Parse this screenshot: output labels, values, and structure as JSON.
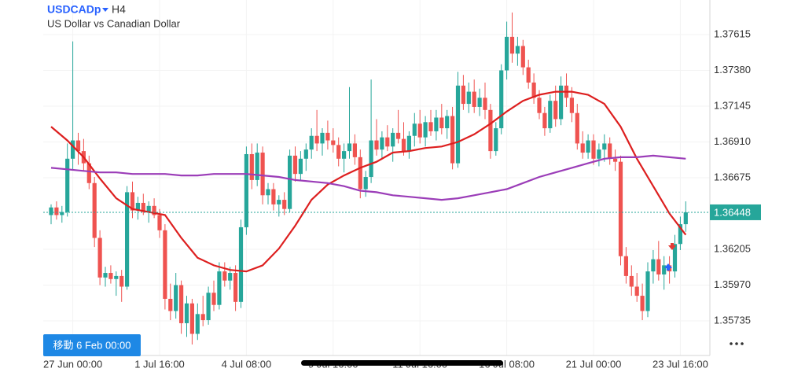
{
  "header": {
    "symbol": "USDCADp",
    "timeframe": "H4",
    "description": "US Dollar vs Canadian Dollar"
  },
  "chart_data": {
    "type": "candlestick",
    "categories": [
      null,
      null,
      null,
      null,
      "27 Jun 00:00",
      null,
      null,
      null,
      null,
      null,
      null,
      null,
      null,
      null,
      null,
      null,
      null,
      null,
      null,
      null,
      "1 Jul 16:00",
      null,
      null,
      null,
      null,
      null,
      null,
      null,
      null,
      null,
      null,
      null,
      null,
      null,
      null,
      null,
      "4 Jul 08:00",
      null,
      null,
      null,
      null,
      null,
      null,
      null,
      null,
      null,
      null,
      null,
      null,
      null,
      null,
      null,
      "9 Jul 16:00",
      null,
      null,
      null,
      null,
      null,
      null,
      null,
      null,
      null,
      null,
      null,
      null,
      null,
      null,
      null,
      "11 Jul 16:00",
      null,
      null,
      null,
      null,
      null,
      null,
      null,
      null,
      null,
      null,
      null,
      null,
      null,
      null,
      null,
      "16 Jul 08:00",
      null,
      null,
      null,
      null,
      null,
      null,
      null,
      null,
      null,
      null,
      null,
      null,
      null,
      null,
      null,
      "21 Jul 00:00",
      null,
      null,
      null,
      null,
      null,
      null,
      null,
      null,
      null,
      null,
      null,
      null,
      null,
      null,
      null,
      "23 Jul 16:00",
      null
    ],
    "candles": [
      [
        1.3643,
        1.365,
        1.3637,
        1.3648
      ],
      [
        1.3648,
        1.3652,
        1.364,
        1.3643
      ],
      [
        1.3643,
        1.3649,
        1.3638,
        1.3645
      ],
      [
        1.3645,
        1.369,
        1.3642,
        1.368
      ],
      [
        1.368,
        1.3757,
        1.3673,
        1.3692
      ],
      [
        1.3692,
        1.3697,
        1.3676,
        1.3685
      ],
      [
        1.3685,
        1.3693,
        1.3672,
        1.3677
      ],
      [
        1.3677,
        1.3682,
        1.366,
        1.3664
      ],
      [
        1.3664,
        1.3668,
        1.3622,
        1.3628
      ],
      [
        1.3628,
        1.3633,
        1.3597,
        1.3602
      ],
      [
        1.3602,
        1.3609,
        1.3596,
        1.3605
      ],
      [
        1.3605,
        1.361,
        1.3598,
        1.3601
      ],
      [
        1.3601,
        1.3606,
        1.359,
        1.3603
      ],
      [
        1.3603,
        1.3607,
        1.3586,
        1.3596
      ],
      [
        1.3596,
        1.3662,
        1.3594,
        1.3658
      ],
      [
        1.3658,
        1.3665,
        1.3641,
        1.3646
      ],
      [
        1.3646,
        1.3655,
        1.364,
        1.3651
      ],
      [
        1.3651,
        1.3657,
        1.3643,
        1.3645
      ],
      [
        1.3645,
        1.3652,
        1.3638,
        1.3649
      ],
      [
        1.3649,
        1.3654,
        1.3641,
        1.3643
      ],
      [
        1.3643,
        1.3647,
        1.3628,
        1.3633
      ],
      [
        1.3633,
        1.3637,
        1.3581,
        1.3588
      ],
      [
        1.3588,
        1.3598,
        1.3574,
        1.358
      ],
      [
        1.358,
        1.3605,
        1.3575,
        1.3597
      ],
      [
        1.3597,
        1.36,
        1.3565,
        1.3572
      ],
      [
        1.3572,
        1.359,
        1.3563,
        1.3585
      ],
      [
        1.3585,
        1.3588,
        1.3558,
        1.3565
      ],
      [
        1.3565,
        1.3585,
        1.3561,
        1.3578
      ],
      [
        1.3578,
        1.359,
        1.357,
        1.3574
      ],
      [
        1.3574,
        1.3596,
        1.3571,
        1.3592
      ],
      [
        1.3592,
        1.36,
        1.358,
        1.3584
      ],
      [
        1.3584,
        1.3612,
        1.3581,
        1.3606
      ],
      [
        1.3606,
        1.3612,
        1.3596,
        1.36
      ],
      [
        1.36,
        1.3609,
        1.3594,
        1.3605
      ],
      [
        1.3605,
        1.361,
        1.358,
        1.3586
      ],
      [
        1.3586,
        1.364,
        1.3582,
        1.3635
      ],
      [
        1.3635,
        1.3688,
        1.363,
        1.3683
      ],
      [
        1.3683,
        1.369,
        1.366,
        1.3666
      ],
      [
        1.3666,
        1.369,
        1.3662,
        1.3684
      ],
      [
        1.3684,
        1.3688,
        1.365,
        1.3656
      ],
      [
        1.3656,
        1.3664,
        1.365,
        1.366
      ],
      [
        1.366,
        1.3664,
        1.3646,
        1.365
      ],
      [
        1.365,
        1.3656,
        1.3642,
        1.3653
      ],
      [
        1.3653,
        1.3658,
        1.3643,
        1.3647
      ],
      [
        1.3647,
        1.3686,
        1.3645,
        1.3682
      ],
      [
        1.3682,
        1.3688,
        1.3665,
        1.367
      ],
      [
        1.367,
        1.3685,
        1.3666,
        1.368
      ],
      [
        1.368,
        1.369,
        1.3672,
        1.3686
      ],
      [
        1.3686,
        1.37,
        1.368,
        1.3695
      ],
      [
        1.3695,
        1.3712,
        1.3685,
        1.369
      ],
      [
        1.369,
        1.37,
        1.3682,
        1.3697
      ],
      [
        1.3697,
        1.3705,
        1.3686,
        1.3692
      ],
      [
        1.3692,
        1.37,
        1.3684,
        1.3689
      ],
      [
        1.3689,
        1.3694,
        1.3675,
        1.368
      ],
      [
        1.368,
        1.369,
        1.3671,
        1.3685
      ],
      [
        1.3685,
        1.3727,
        1.368,
        1.369
      ],
      [
        1.369,
        1.3696,
        1.3676,
        1.3681
      ],
      [
        1.3681,
        1.3686,
        1.3654,
        1.366
      ],
      [
        1.366,
        1.3672,
        1.3655,
        1.3668
      ],
      [
        1.3668,
        1.3732,
        1.3664,
        1.3692
      ],
      [
        1.3692,
        1.3706,
        1.3682,
        1.3686
      ],
      [
        1.3686,
        1.3698,
        1.368,
        1.3694
      ],
      [
        1.3694,
        1.3702,
        1.3685,
        1.3688
      ],
      [
        1.3688,
        1.37,
        1.3678,
        1.3697
      ],
      [
        1.3697,
        1.3712,
        1.369,
        1.3693
      ],
      [
        1.3693,
        1.3704,
        1.3682,
        1.3685
      ],
      [
        1.3685,
        1.3698,
        1.368,
        1.3695
      ],
      [
        1.3695,
        1.371,
        1.3688,
        1.3703
      ],
      [
        1.3703,
        1.3712,
        1.369,
        1.3694
      ],
      [
        1.3694,
        1.3708,
        1.3688,
        1.3704
      ],
      [
        1.3704,
        1.3712,
        1.3695,
        1.3698
      ],
      [
        1.3698,
        1.3712,
        1.3692,
        1.3707
      ],
      [
        1.3707,
        1.3716,
        1.3696,
        1.37
      ],
      [
        1.37,
        1.3712,
        1.3693,
        1.3708
      ],
      [
        1.3708,
        1.3714,
        1.3673,
        1.3677
      ],
      [
        1.3677,
        1.3737,
        1.3674,
        1.3728
      ],
      [
        1.3728,
        1.3735,
        1.3712,
        1.3716
      ],
      [
        1.3716,
        1.373,
        1.371,
        1.3724
      ],
      [
        1.3724,
        1.3732,
        1.371,
        1.3714
      ],
      [
        1.3714,
        1.3726,
        1.3708,
        1.372
      ],
      [
        1.372,
        1.373,
        1.3706,
        1.3712
      ],
      [
        1.3712,
        1.3716,
        1.368,
        1.3685
      ],
      [
        1.3685,
        1.3704,
        1.3682,
        1.37
      ],
      [
        1.37,
        1.3742,
        1.3696,
        1.3738
      ],
      [
        1.3738,
        1.377,
        1.3732,
        1.376
      ],
      [
        1.376,
        1.3776,
        1.3743,
        1.3749
      ],
      [
        1.3749,
        1.376,
        1.3741,
        1.3754
      ],
      [
        1.3754,
        1.3758,
        1.3735,
        1.374
      ],
      [
        1.374,
        1.3745,
        1.3726,
        1.373
      ],
      [
        1.373,
        1.3736,
        1.3716,
        1.372
      ],
      [
        1.372,
        1.3725,
        1.3706,
        1.371
      ],
      [
        1.371,
        1.3714,
        1.3695,
        1.37
      ],
      [
        1.37,
        1.3722,
        1.3697,
        1.3718
      ],
      [
        1.3718,
        1.3728,
        1.3701,
        1.3706
      ],
      [
        1.3706,
        1.3734,
        1.3702,
        1.3728
      ],
      [
        1.3728,
        1.3736,
        1.3714,
        1.372
      ],
      [
        1.372,
        1.3727,
        1.3704,
        1.371
      ],
      [
        1.371,
        1.3716,
        1.3686,
        1.369
      ],
      [
        1.369,
        1.3698,
        1.368,
        1.3684
      ],
      [
        1.3684,
        1.3696,
        1.368,
        1.3692
      ],
      [
        1.3692,
        1.3696,
        1.3676,
        1.368
      ],
      [
        1.368,
        1.369,
        1.3675,
        1.3686
      ],
      [
        1.3686,
        1.3696,
        1.3678,
        1.369
      ],
      [
        1.369,
        1.3694,
        1.3676,
        1.368
      ],
      [
        1.368,
        1.3686,
        1.3672,
        1.3678
      ],
      [
        1.3678,
        1.3682,
        1.361,
        1.3616
      ],
      [
        1.3616,
        1.3622,
        1.3598,
        1.3603
      ],
      [
        1.3603,
        1.361,
        1.359,
        1.3596
      ],
      [
        1.3596,
        1.3605,
        1.3586,
        1.359
      ],
      [
        1.359,
        1.3598,
        1.3574,
        1.358
      ],
      [
        1.358,
        1.3612,
        1.3576,
        1.3606
      ],
      [
        1.3606,
        1.362,
        1.3598,
        1.3614
      ],
      [
        1.3614,
        1.3626,
        1.36,
        1.3604
      ],
      [
        1.3604,
        1.3616,
        1.3594,
        1.361
      ],
      [
        1.361,
        1.3616,
        1.3598,
        1.3606
      ],
      [
        1.3606,
        1.363,
        1.3602,
        1.3624
      ],
      [
        1.3624,
        1.3642,
        1.362,
        1.3637
      ],
      [
        1.3637,
        1.3652,
        1.3632,
        1.36448
      ]
    ],
    "up_color": "#26a69a",
    "down_color": "#ef5350",
    "series": [
      {
        "color": "#dd1f1f",
        "x": [
          0,
          3,
          6,
          9,
          12,
          15,
          18,
          21,
          24,
          27,
          30,
          33,
          36,
          39,
          42,
          45,
          48,
          51,
          54,
          57,
          60,
          63,
          66,
          69,
          72,
          75,
          78,
          81,
          84,
          87,
          90,
          93,
          96,
          99,
          102,
          105,
          108,
          111,
          114,
          117
        ],
        "values": [
          1.3701,
          1.3692,
          1.3681,
          1.3667,
          1.3654,
          1.3647,
          1.3645,
          1.3643,
          1.3628,
          1.3615,
          1.361,
          1.3607,
          1.3606,
          1.361,
          1.3621,
          1.3636,
          1.3653,
          1.3663,
          1.3669,
          1.3674,
          1.3678,
          1.3684,
          1.3685,
          1.3687,
          1.3688,
          1.3691,
          1.3696,
          1.3703,
          1.3711,
          1.3718,
          1.3722,
          1.3724,
          1.3724,
          1.3722,
          1.3716,
          1.3701,
          1.368,
          1.3662,
          1.3644,
          1.363
        ]
      },
      {
        "color": "#9b3db8",
        "x": [
          0,
          3,
          6,
          9,
          12,
          15,
          18,
          21,
          24,
          27,
          30,
          33,
          36,
          39,
          42,
          45,
          48,
          51,
          54,
          57,
          60,
          63,
          66,
          69,
          72,
          75,
          78,
          81,
          84,
          87,
          90,
          93,
          96,
          99,
          102,
          105,
          108,
          111,
          114,
          117
        ],
        "values": [
          1.3674,
          1.3673,
          1.3672,
          1.3671,
          1.3671,
          1.367,
          1.367,
          1.367,
          1.3669,
          1.3669,
          1.367,
          1.367,
          1.367,
          1.3669,
          1.3668,
          1.3666,
          1.3665,
          1.3664,
          1.3662,
          1.3659,
          1.3658,
          1.3656,
          1.3655,
          1.3654,
          1.3653,
          1.3654,
          1.3656,
          1.3658,
          1.366,
          1.3664,
          1.3668,
          1.3671,
          1.3674,
          1.3677,
          1.368,
          1.3681,
          1.3681,
          1.3682,
          1.3681,
          1.368
        ]
      }
    ],
    "ylim": [
      1.35508,
      1.37842
    ],
    "yticks": [
      1.35735,
      {
        "value": 1.3597,
        "label": "1.35970"
      },
      1.36205,
      1.36675,
      {
        "value": 1.3691,
        "label": "1.36910"
      },
      1.37145,
      {
        "value": 1.3738,
        "label": "1.37380"
      },
      1.37615
    ],
    "current_price": 1.36448,
    "grid": true
  },
  "footer": {
    "goto_button": "移動 6 Feb 00:00"
  }
}
